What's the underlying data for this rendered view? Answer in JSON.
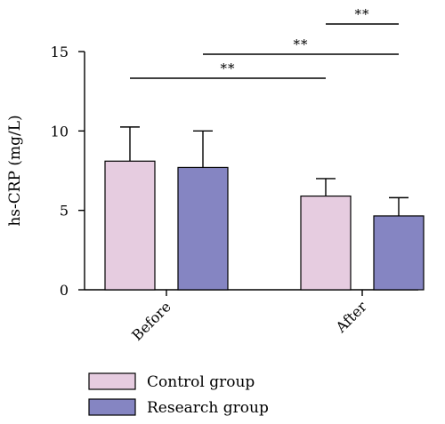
{
  "chart_data": {
    "type": "bar",
    "title": "",
    "xlabel": "",
    "ylabel": "hs-CRP (mg/L)",
    "ylim": [
      0,
      15
    ],
    "yticks": [
      "0",
      "5",
      "10",
      "15"
    ],
    "categories": [
      "Before",
      "After"
    ],
    "series": [
      {
        "name": "Control group",
        "color": "#e6cce0",
        "values": [
          8.1,
          5.9
        ],
        "errors": [
          2.15,
          1.1
        ]
      },
      {
        "name": "Research group",
        "color": "#8585c2",
        "values": [
          7.7,
          4.65
        ],
        "errors": [
          2.3,
          1.15
        ]
      }
    ],
    "significance": [
      {
        "label": "**",
        "from": {
          "category": "Before",
          "series": "Control group"
        },
        "to": {
          "category": "After",
          "series": "Control group"
        }
      },
      {
        "label": "**",
        "from": {
          "category": "Before",
          "series": "Research group"
        },
        "to": {
          "category": "After",
          "series": "Research group"
        }
      },
      {
        "label": "**",
        "from": {
          "category": "After",
          "series": "Control group"
        },
        "to": {
          "category": "After",
          "series": "Research group"
        }
      }
    ],
    "legend_position": "bottom-left",
    "grid": false
  }
}
